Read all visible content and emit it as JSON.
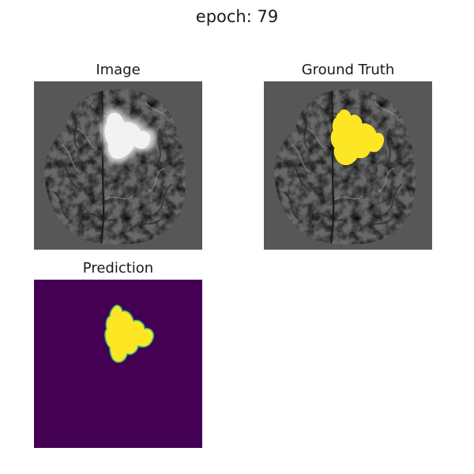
{
  "figure": {
    "suptitle": "epoch: 79"
  },
  "panels": {
    "image": {
      "title": "Image"
    },
    "ground_truth": {
      "title": "Ground Truth"
    },
    "prediction": {
      "title": "Prediction"
    }
  },
  "colors": {
    "mri_background": "#575757",
    "brain_tissue": "#6a6a6a",
    "tumor_bright": "#e6e6e6",
    "mask_foreground": "#fde725",
    "mask_background": "#440154",
    "mask_edge": "#35b779"
  }
}
